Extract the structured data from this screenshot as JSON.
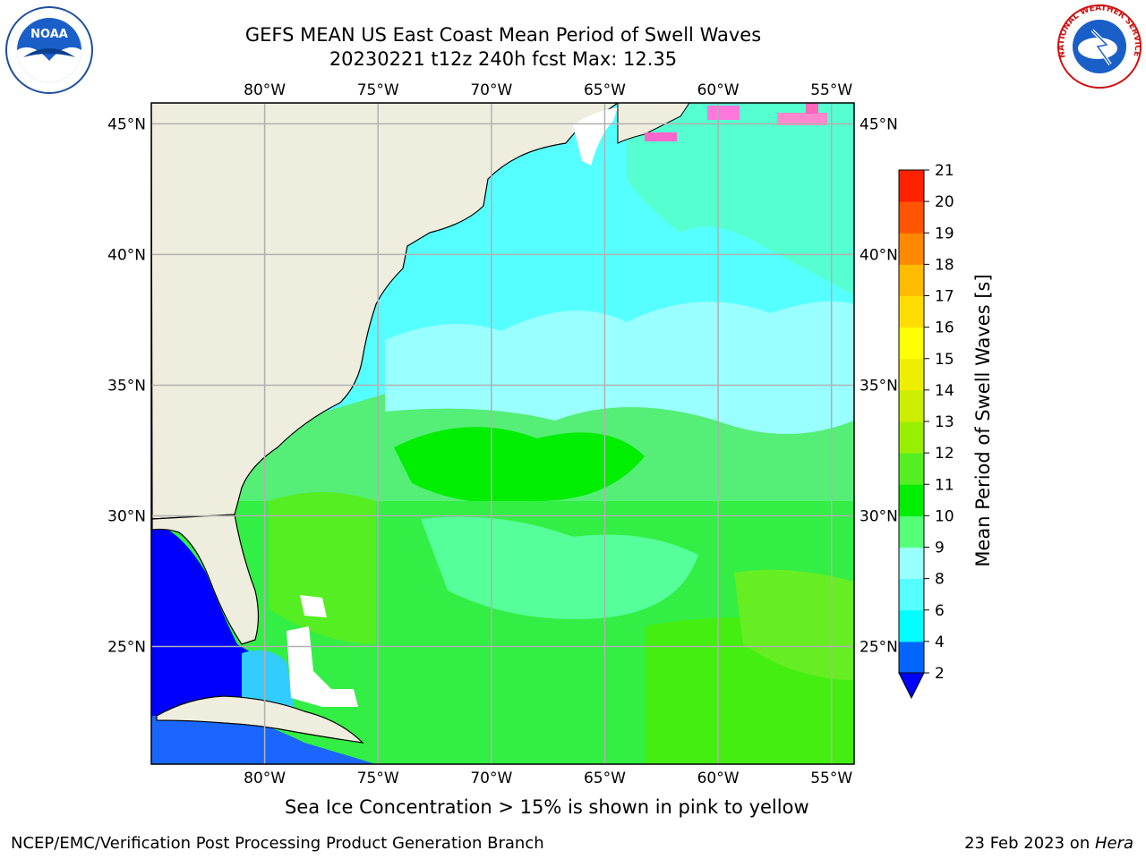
{
  "title": {
    "line1": "GEFS MEAN US East Coast Mean Period of Swell Waves",
    "line2": "20230221 t12z 240h fcst   Max: 12.35"
  },
  "map": {
    "lon_range": [
      -85,
      -54
    ],
    "lat_range": [
      20.5,
      45.8
    ],
    "lon_ticks": [
      -80,
      -75,
      -70,
      -65,
      -60,
      -55
    ],
    "lat_ticks": [
      25,
      30,
      35,
      40,
      45
    ],
    "lon_labels": [
      "80°W",
      "75°W",
      "70°W",
      "65°W",
      "60°W",
      "55°W"
    ],
    "lat_labels": [
      "25°N",
      "30°N",
      "35°N",
      "40°N",
      "45°N"
    ],
    "land_color": "#efeddd",
    "grid_color": "#b0b0b0"
  },
  "colorbar": {
    "label": "Mean Period of Swell Waves [s]",
    "ticks": [
      "2",
      "4",
      "6",
      "8",
      "9",
      "10",
      "11",
      "12",
      "13",
      "14",
      "15",
      "16",
      "17",
      "18",
      "19",
      "20",
      "21"
    ],
    "colors": [
      "#0066ff",
      "#00ffff",
      "#55ffff",
      "#99ffff",
      "#55ff77",
      "#00ee00",
      "#55ee22",
      "#99ee00",
      "#ccee00",
      "#eeee00",
      "#ffff00",
      "#ffdd00",
      "#ffbb00",
      "#ff8800",
      "#ff5500",
      "#ff2200"
    ],
    "under_color": "#0000ff"
  },
  "footer": {
    "note": "Sea Ice Concentration > 15% is shown in pink to yellow",
    "left": "NCEP/EMC/Verification Post Processing Product Generation Branch",
    "right_date": "23 Feb 2023 on ",
    "right_machine": "Hera"
  },
  "logos": {
    "noaa_text": "NOAA",
    "nws_text": "NATIONAL WEATHER SERVICE"
  }
}
